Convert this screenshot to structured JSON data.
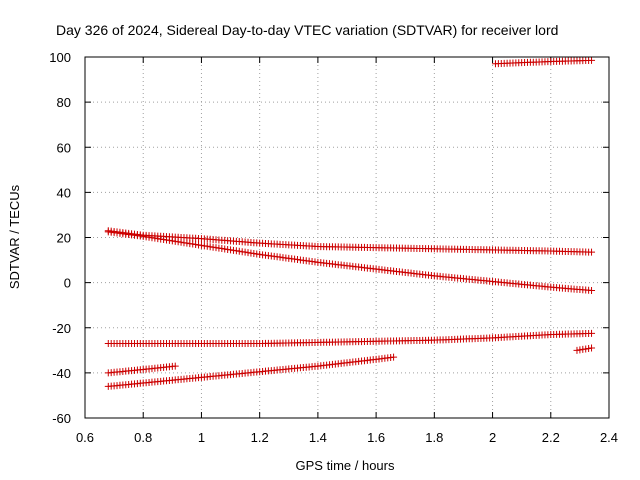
{
  "chart_data": {
    "type": "scatter",
    "title": "Day 326 of 2024, Sidereal Day-to-day VTEC variation (SDTVAR) for receiver lord",
    "xlabel": "GPS time / hours",
    "ylabel": "SDTVAR / TECUs",
    "xlim": [
      0.6,
      2.4
    ],
    "ylim": [
      -60,
      100
    ],
    "xticks": [
      0.6,
      0.8,
      1,
      1.2,
      1.4,
      1.6,
      1.8,
      2,
      2.2,
      2.4
    ],
    "xtick_labels": [
      "0.6",
      "0.8",
      "1",
      "1.2",
      "1.4",
      "1.6",
      "1.8",
      "2",
      "2.2",
      "2.4"
    ],
    "yticks": [
      -60,
      -40,
      -20,
      0,
      20,
      40,
      60,
      80,
      100
    ],
    "ytick_labels": [
      "-60",
      "-40",
      "-20",
      "0",
      "20",
      "40",
      "60",
      "80",
      "100"
    ],
    "grid": true,
    "marker": "+",
    "color": "#cc0000",
    "series": [
      {
        "name": "track-1",
        "x": [
          0.68,
          0.8,
          1.0,
          1.2,
          1.4,
          1.6,
          1.8,
          2.0,
          2.2,
          2.34
        ],
        "y": [
          23,
          21,
          19.5,
          17.5,
          16,
          15.5,
          15,
          14.5,
          14,
          13.5
        ]
      },
      {
        "name": "track-2",
        "x": [
          0.68,
          0.8,
          1.0,
          1.2,
          1.4,
          1.6,
          1.8,
          2.0,
          2.2,
          2.34
        ],
        "y": [
          22.5,
          20.5,
          16.5,
          12.5,
          9,
          6,
          3,
          0.5,
          -2,
          -3.5
        ]
      },
      {
        "name": "track-3",
        "x": [
          0.68,
          0.8,
          1.0,
          1.2,
          1.4,
          1.6,
          1.8,
          2.0,
          2.2,
          2.34
        ],
        "y": [
          -27,
          -27,
          -27,
          -27,
          -26.5,
          -26,
          -25.5,
          -24.5,
          -23,
          -22.5
        ]
      },
      {
        "name": "track-4",
        "x": [
          0.68,
          0.8,
          0.91
        ],
        "y": [
          -40,
          -38.5,
          -37
        ]
      },
      {
        "name": "track-5",
        "x": [
          0.68,
          0.8,
          1.0,
          1.2,
          1.4,
          1.6,
          1.66
        ],
        "y": [
          -46,
          -44.5,
          -42,
          -39.5,
          -37,
          -34,
          -33
        ]
      },
      {
        "name": "track-6",
        "x": [
          2.01,
          2.1,
          2.2,
          2.34
        ],
        "y": [
          97,
          97.5,
          98,
          98.5
        ]
      },
      {
        "name": "track-7",
        "x": [
          2.29,
          2.34
        ],
        "y": [
          -30,
          -29
        ]
      }
    ]
  }
}
